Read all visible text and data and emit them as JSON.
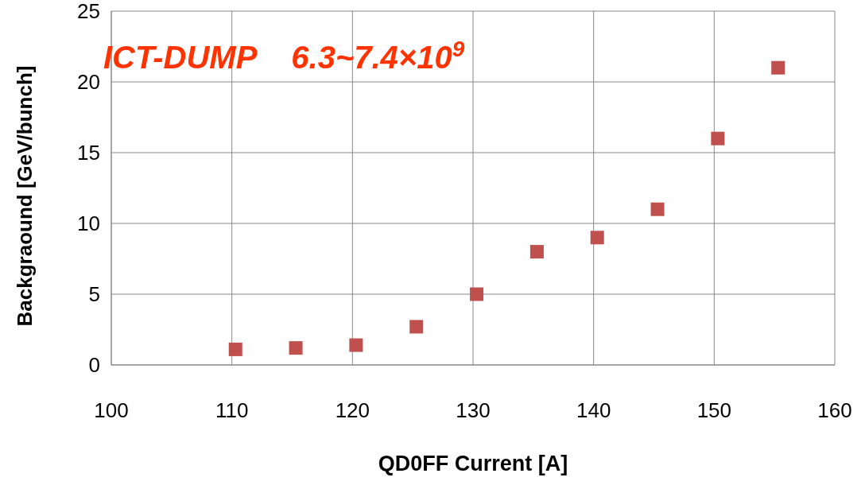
{
  "chart_data": {
    "type": "scatter",
    "xlabel": "QD0FF Current [A]",
    "ylabel": "Backgraound [GeV/bunch]",
    "annotations": [
      "ICT-DUMP    6.3~7.4×10$^{9}$"
    ],
    "x": [
      110.3,
      115.3,
      120.3,
      125.3,
      130.3,
      135.3,
      140.3,
      145.3,
      150.3,
      155.3
    ],
    "values": [
      1.1,
      1.2,
      1.4,
      2.7,
      5.0,
      8.0,
      9.0,
      11.0,
      16.0,
      21.0
    ],
    "color": "#c0504d",
    "marker": "square",
    "xlim": [
      100,
      160
    ],
    "xticks": [
      100,
      110,
      120,
      130,
      140,
      150,
      160
    ],
    "ylim": [
      0,
      25
    ],
    "yticks": [
      0,
      5,
      10,
      15,
      20,
      25
    ],
    "grid": true
  }
}
